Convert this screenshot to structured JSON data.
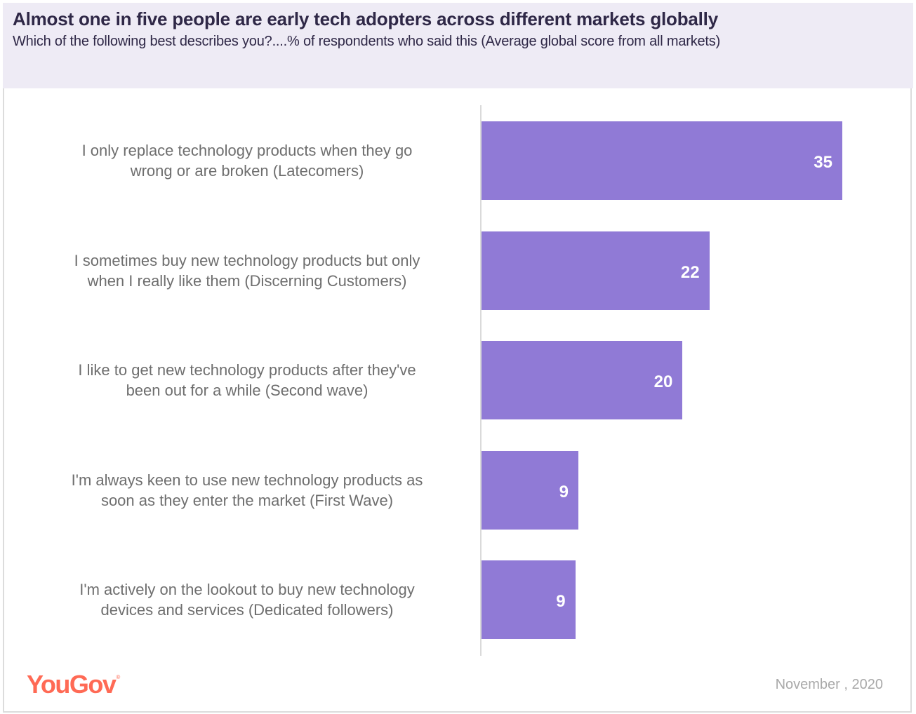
{
  "header": {
    "title": "Almost one in five people are early tech adopters across different markets globally",
    "subtitle": "Which of the following best describes you?....% of respondents who said this (Average global score from all markets)"
  },
  "footer": {
    "logo": "YouGov",
    "date": "November , 2020"
  },
  "colors": {
    "bar": "#907ad6",
    "header_bg": "#eeebf5",
    "title": "#2f2847",
    "logo": "#ff6a55"
  },
  "chart_data": {
    "type": "bar",
    "orientation": "horizontal",
    "title": "Almost one in five people are early tech adopters across different markets globally",
    "subtitle": "Which of the following best describes you?....% of respondents who said this (Average global score from all markets)",
    "xlabel": "",
    "ylabel": "",
    "xlim": [
      0,
      35
    ],
    "grid": false,
    "legend": "none",
    "unit": "% of respondents",
    "categories": [
      "I only replace technology products when they go wrong or are broken (Latecomers)",
      "I sometimes buy new technology products but only when I really like them (Discerning Customers)",
      "I like to get new technology products after they've been out for a while (Second wave)",
      "I'm always keen to use new technology products as soon as they enter the market (First Wave)",
      "I'm actively on the lookout to buy new technology devices and services (Dedicated followers)"
    ],
    "category_lines": [
      [
        "I only replace technology products when they go",
        "wrong or are broken (Latecomers)"
      ],
      [
        "I sometimes buy new technology products but only",
        "when I really like them (Discerning Customers)"
      ],
      [
        "I like to get new technology products after they've",
        "been out for a while (Second wave)"
      ],
      [
        "I'm always keen to use new technology products as",
        "soon as they enter the market (First Wave)"
      ],
      [
        "I'm actively on the lookout to buy new technology",
        "devices and services (Dedicated followers)"
      ]
    ],
    "values": [
      35,
      22.1,
      19.5,
      9.4,
      9.1
    ],
    "data_labels": [
      "35",
      "22",
      "20",
      "9",
      "9"
    ]
  }
}
